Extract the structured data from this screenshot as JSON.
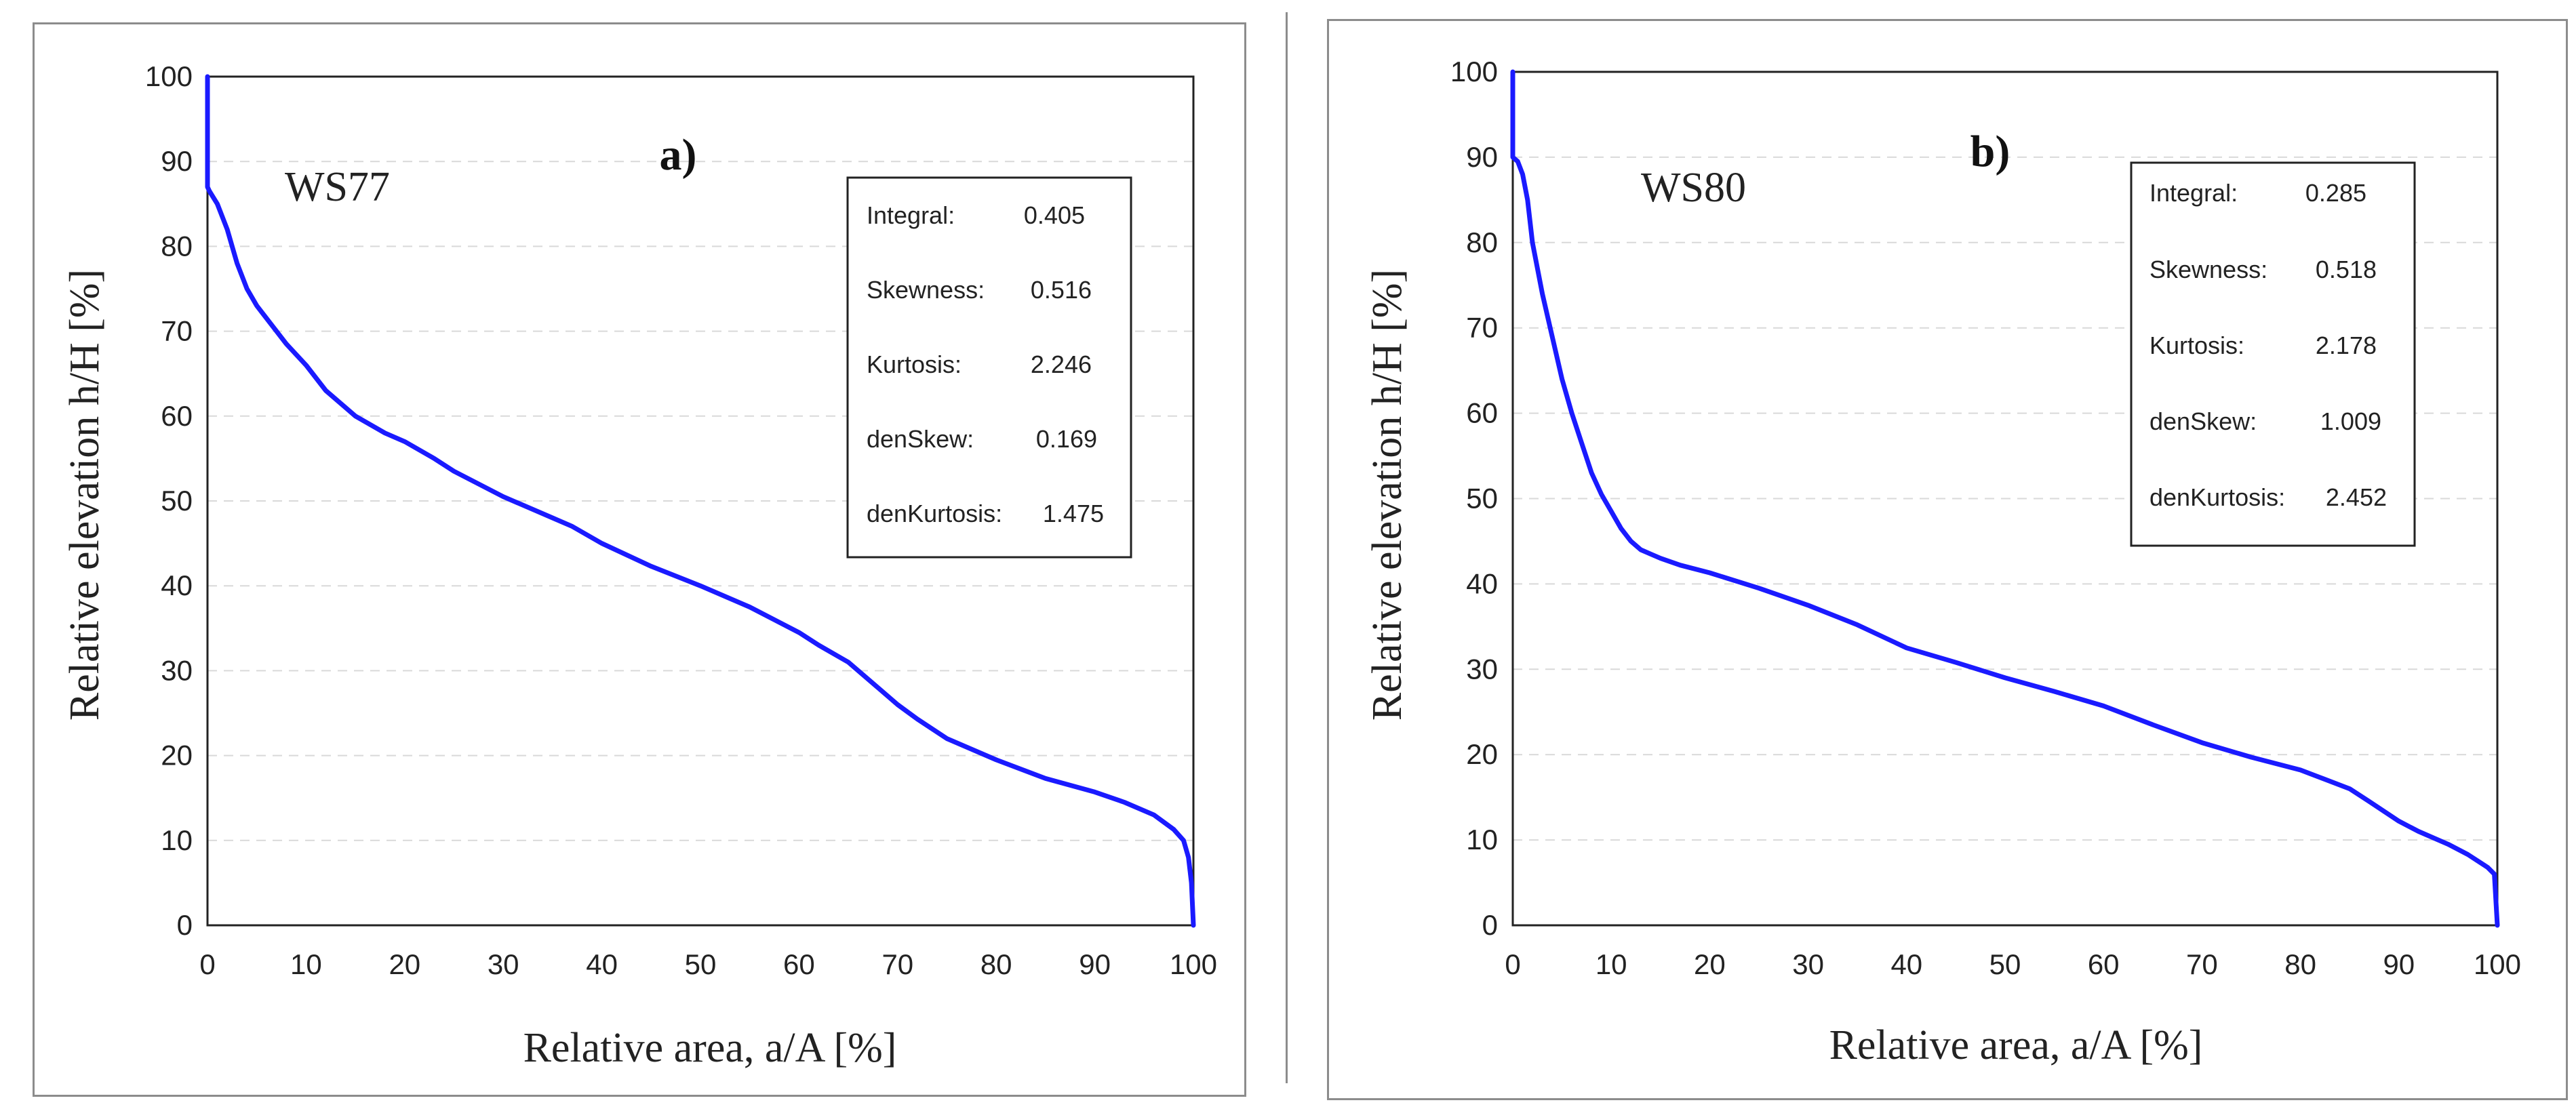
{
  "chart_data": [
    {
      "type": "line",
      "panel_label": "a)",
      "series_label": "WS77",
      "xlabel": "Relative area, a/A  [%]",
      "ylabel": "Relative elevation h/H [%]",
      "xlim": [
        0,
        100
      ],
      "ylim": [
        0,
        100
      ],
      "xticks": [
        "0",
        "10",
        "20",
        "30",
        "40",
        "50",
        "60",
        "70",
        "80",
        "90",
        "100"
      ],
      "yticks": [
        "0",
        "10",
        "20",
        "30",
        "40",
        "50",
        "60",
        "70",
        "80",
        "90",
        "100"
      ],
      "grid": "horizontal dashed",
      "line_color": "#1a1aff",
      "stats": [
        {
          "label": "Integral:",
          "value": "0.405"
        },
        {
          "label": "Skewness:",
          "value": "0.516"
        },
        {
          "label": "Kurtosis:",
          "value": "2.246"
        },
        {
          "label": "denSkew:",
          "value": "0.169"
        },
        {
          "label": "denKurtosis:",
          "value": "1.475"
        }
      ],
      "x": [
        0,
        0,
        0.2,
        1,
        2,
        3,
        4,
        5,
        7,
        8,
        10,
        12,
        15,
        18,
        20,
        23,
        25,
        30,
        35,
        37,
        40,
        45,
        50,
        55,
        60,
        62,
        65,
        68,
        70,
        72,
        75,
        80,
        85,
        90,
        93,
        96,
        98,
        99,
        99.5,
        99.8,
        100
      ],
      "y": [
        100,
        87,
        86.5,
        85,
        82,
        78,
        75,
        73,
        70,
        68.5,
        66,
        63,
        60,
        58,
        57,
        55,
        53.5,
        50.5,
        48,
        47,
        45,
        42.3,
        40,
        37.5,
        34.5,
        33,
        31,
        28,
        26,
        24.3,
        22,
        19.5,
        17.3,
        15.7,
        14.5,
        13,
        11.3,
        10,
        8,
        5,
        0
      ]
    },
    {
      "type": "line",
      "panel_label": "b)",
      "series_label": "WS80",
      "xlabel": "Relative area, a/A  [%]",
      "ylabel": "Relative elevation h/H [%]",
      "xlim": [
        0,
        100
      ],
      "ylim": [
        0,
        100
      ],
      "xticks": [
        "0",
        "10",
        "20",
        "30",
        "40",
        "50",
        "60",
        "70",
        "80",
        "90",
        "100"
      ],
      "yticks": [
        "0",
        "10",
        "20",
        "30",
        "40",
        "50",
        "60",
        "70",
        "80",
        "90",
        "100"
      ],
      "grid": "horizontal dashed",
      "line_color": "#1a1aff",
      "stats": [
        {
          "label": "Integral:",
          "value": "0.285"
        },
        {
          "label": "Skewness:",
          "value": "0.518"
        },
        {
          "label": "Kurtosis:",
          "value": "2.178"
        },
        {
          "label": "denSkew:",
          "value": "1.009"
        },
        {
          "label": "denKurtosis:",
          "value": "2.452"
        }
      ],
      "x": [
        0,
        0,
        0.5,
        1,
        1.5,
        2,
        3,
        4,
        5,
        6,
        7,
        8,
        9,
        10,
        11,
        12,
        13,
        14,
        15,
        17,
        20,
        25,
        30,
        35,
        40,
        45,
        50,
        55,
        60,
        65,
        70,
        75,
        80,
        85,
        87,
        90,
        92,
        95,
        97,
        99,
        99.7,
        100
      ],
      "y": [
        100,
        90,
        89.5,
        88,
        85,
        80,
        74,
        69,
        64,
        60,
        56.5,
        53,
        50.5,
        48.5,
        46.5,
        45,
        44,
        43.5,
        43,
        42.2,
        41.3,
        39.5,
        37.5,
        35.2,
        32.5,
        30.8,
        29,
        27.4,
        25.7,
        23.5,
        21.4,
        19.7,
        18.2,
        16,
        14.5,
        12.2,
        11,
        9.5,
        8.3,
        6.8,
        6,
        0
      ]
    }
  ]
}
